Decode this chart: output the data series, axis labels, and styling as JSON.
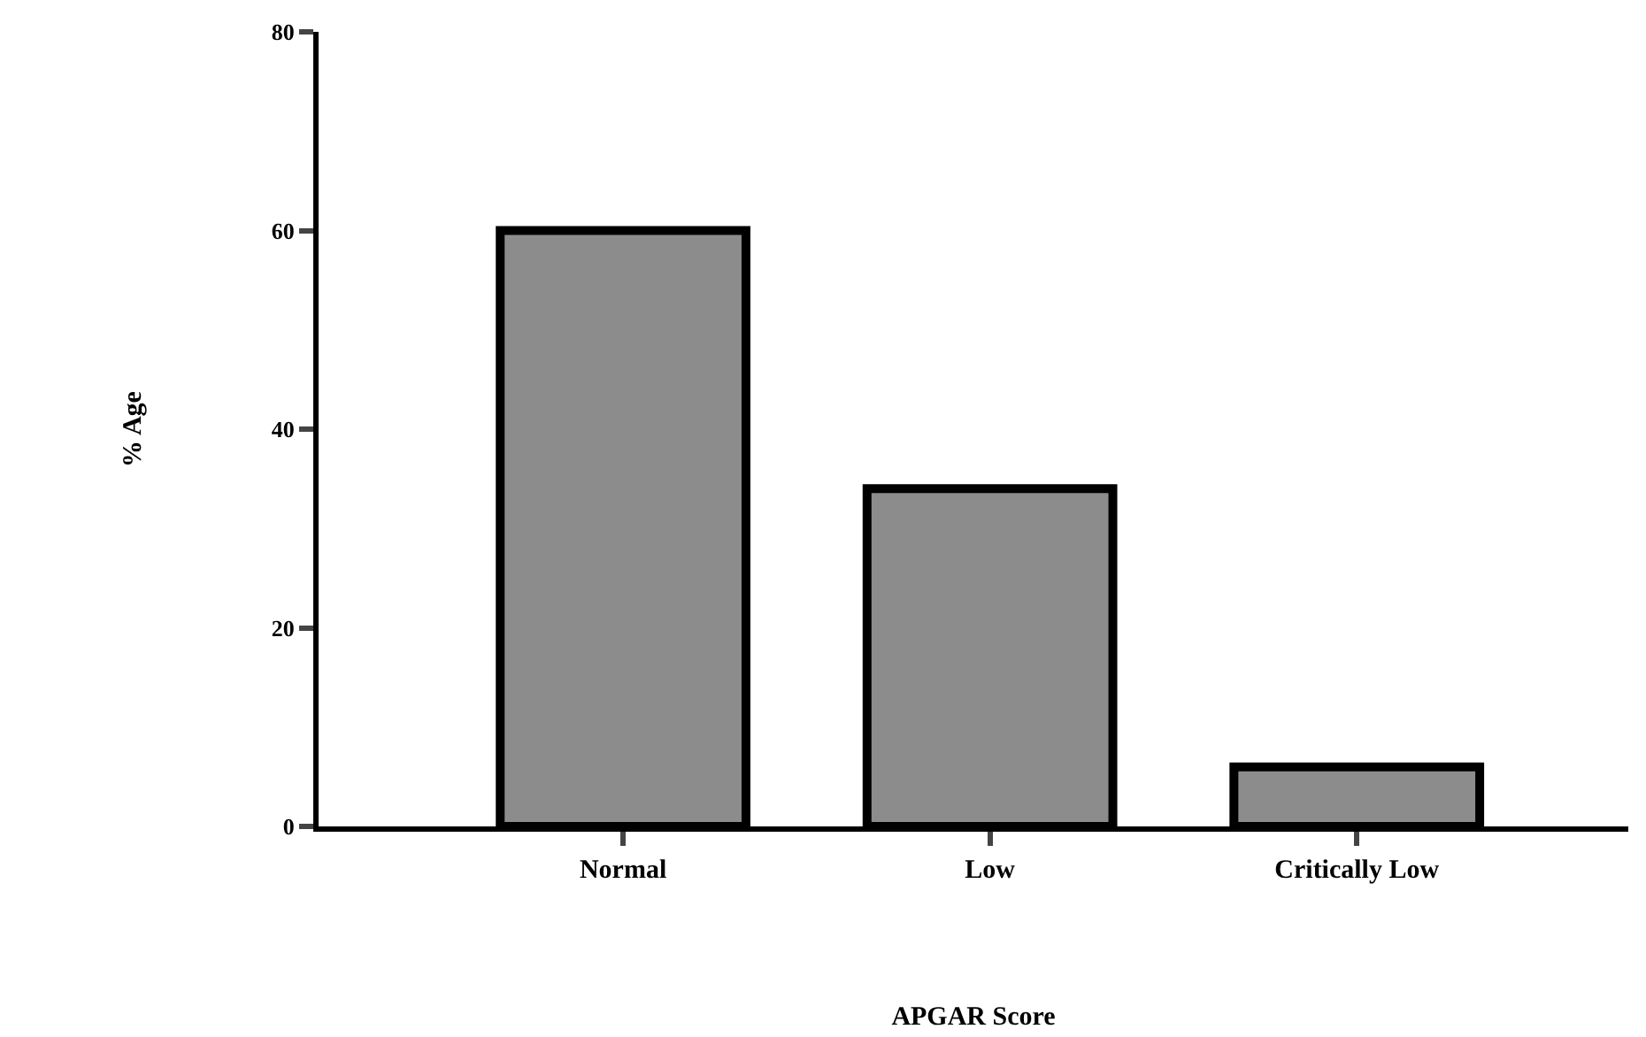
{
  "chart_data": {
    "type": "bar",
    "xlabel": "APGAR Score",
    "ylabel": "% Age",
    "categories": [
      "Normal",
      "Low",
      "Critically Low"
    ],
    "values": [
      60,
      34,
      6
    ],
    "color": "#8c8c8c",
    "ylim": [
      0,
      80
    ],
    "yticks": [
      0,
      20,
      40,
      60,
      80
    ],
    "grid": false,
    "legend": false
  }
}
